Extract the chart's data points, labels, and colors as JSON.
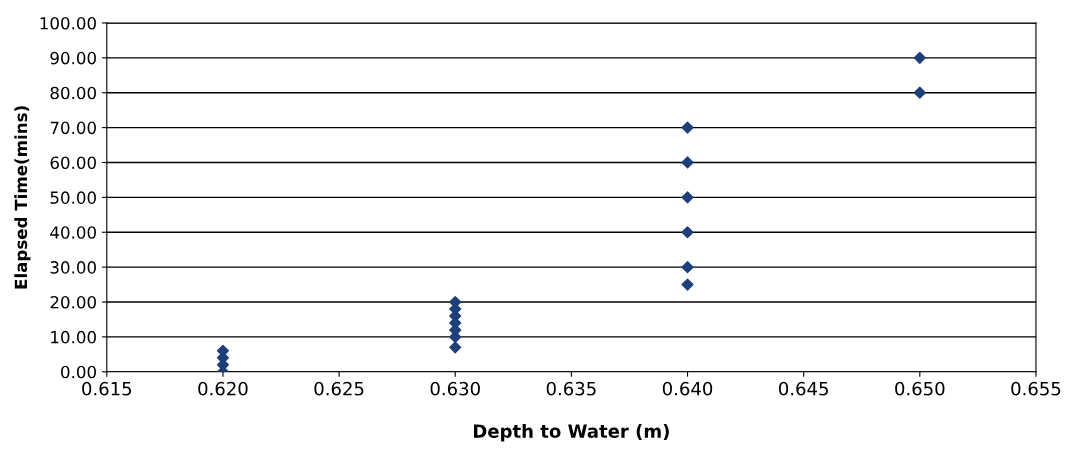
{
  "chart_data": {
    "type": "scatter",
    "xlabel": "Depth to Water (m)",
    "ylabel": "Elapsed Time(mins)",
    "x": [
      0.62,
      0.62,
      0.62,
      0.62,
      0.63,
      0.63,
      0.63,
      0.63,
      0.63,
      0.63,
      0.63,
      0.64,
      0.64,
      0.64,
      0.64,
      0.64,
      0.64,
      0.65,
      0.65
    ],
    "values": [
      0,
      2,
      4,
      6,
      7,
      10,
      12,
      14,
      16,
      18,
      20,
      25,
      30,
      40,
      50,
      60,
      70,
      80,
      90
    ],
    "color": "#1f3f7a",
    "marker": "diamond",
    "grid": "y",
    "xlim": [
      0.615,
      0.655
    ],
    "xticks": [
      {
        "value": 0.615,
        "label": "0.615"
      },
      {
        "value": 0.62,
        "label": "0.620"
      },
      {
        "value": 0.625,
        "label": "0.625"
      },
      {
        "value": 0.63,
        "label": "0.630"
      },
      {
        "value": 0.635,
        "label": "0.635"
      },
      {
        "value": 0.64,
        "label": "0.640"
      },
      {
        "value": 0.645,
        "label": "0.645"
      },
      {
        "value": 0.65,
        "label": "0.650"
      },
      {
        "value": 0.655,
        "label": "0.655"
      }
    ],
    "ylim": [
      0,
      100
    ],
    "yticks": [
      {
        "value": 0,
        "label": "0.00"
      },
      {
        "value": 10,
        "label": "10.00"
      },
      {
        "value": 20,
        "label": "20.00"
      },
      {
        "value": 30,
        "label": "30.00"
      },
      {
        "value": 40,
        "label": "40.00"
      },
      {
        "value": 50,
        "label": "50.00"
      },
      {
        "value": 60,
        "label": "60.00"
      },
      {
        "value": 70,
        "label": "70.00"
      },
      {
        "value": 80,
        "label": "80.00"
      },
      {
        "value": 90,
        "label": "90.00"
      },
      {
        "value": 100,
        "label": "100.00"
      }
    ]
  }
}
